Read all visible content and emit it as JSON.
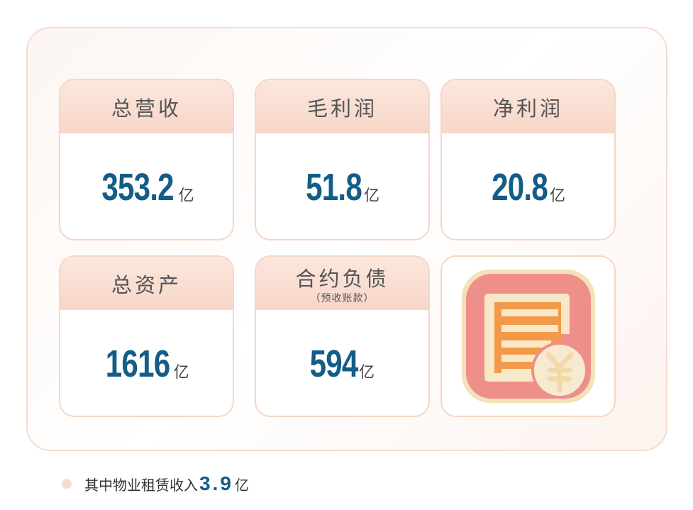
{
  "cards": [
    {
      "title": "总营收",
      "value": "353.2",
      "unit": "亿"
    },
    {
      "title": "毛利润",
      "value": "51.8",
      "unit": "亿"
    },
    {
      "title": "净利润",
      "value": "20.8",
      "unit": "亿"
    },
    {
      "title": "总资产",
      "value": "1616",
      "unit": "亿"
    },
    {
      "title": "合约负债",
      "subtitle": "（预收账款）",
      "value": "594",
      "unit": "亿"
    }
  ],
  "icon": "invoice-yuan-icon",
  "colors": {
    "accent": "#135d86",
    "header": "#f7d6c8",
    "icon_bg": "#f0908a"
  },
  "footer": {
    "prefix": "其中物业租赁收入",
    "value": "3.9",
    "unit": "亿"
  }
}
